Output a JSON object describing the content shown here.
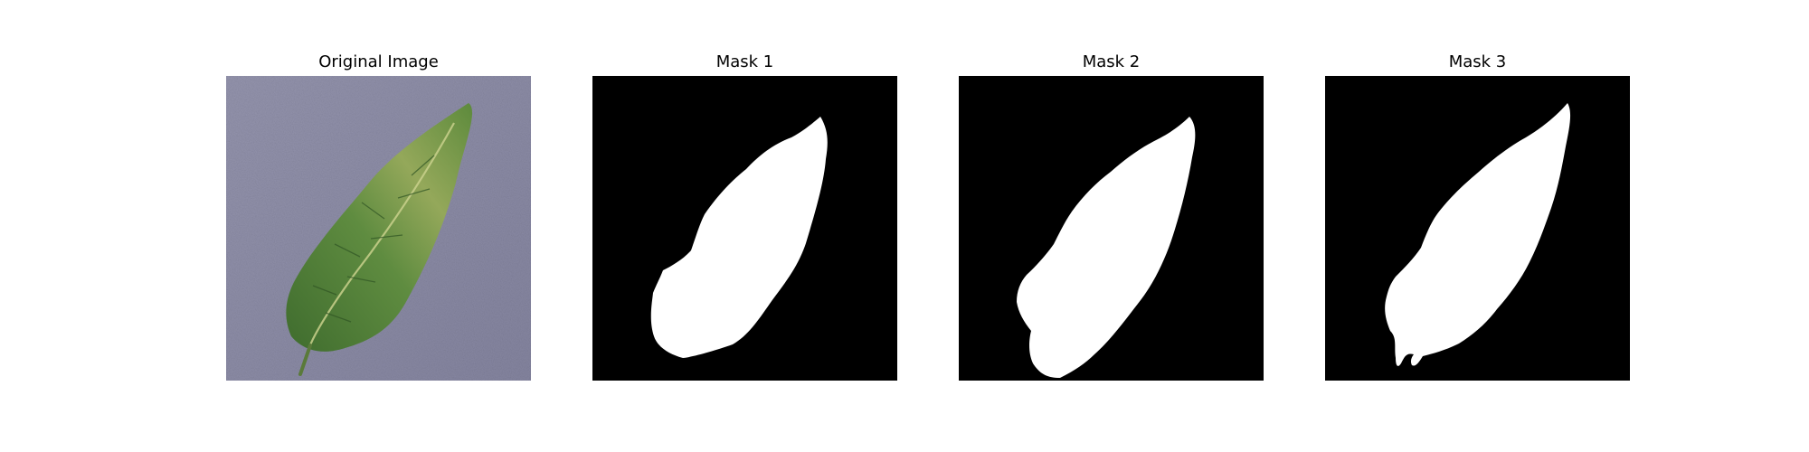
{
  "figure": {
    "panels": [
      {
        "title": "Original Image",
        "kind": "photo"
      },
      {
        "title": "Mask 1",
        "kind": "mask"
      },
      {
        "title": "Mask 2",
        "kind": "mask"
      },
      {
        "title": "Mask 3",
        "kind": "mask"
      }
    ]
  },
  "colors": {
    "background": "#ffffff",
    "surface": "#8d8da6",
    "leaf_dark": "#3f6c2e",
    "leaf_mid": "#5f8c40",
    "leaf_light": "#a8b55f",
    "mask_background": "#000000",
    "mask_foreground": "#ffffff"
  }
}
